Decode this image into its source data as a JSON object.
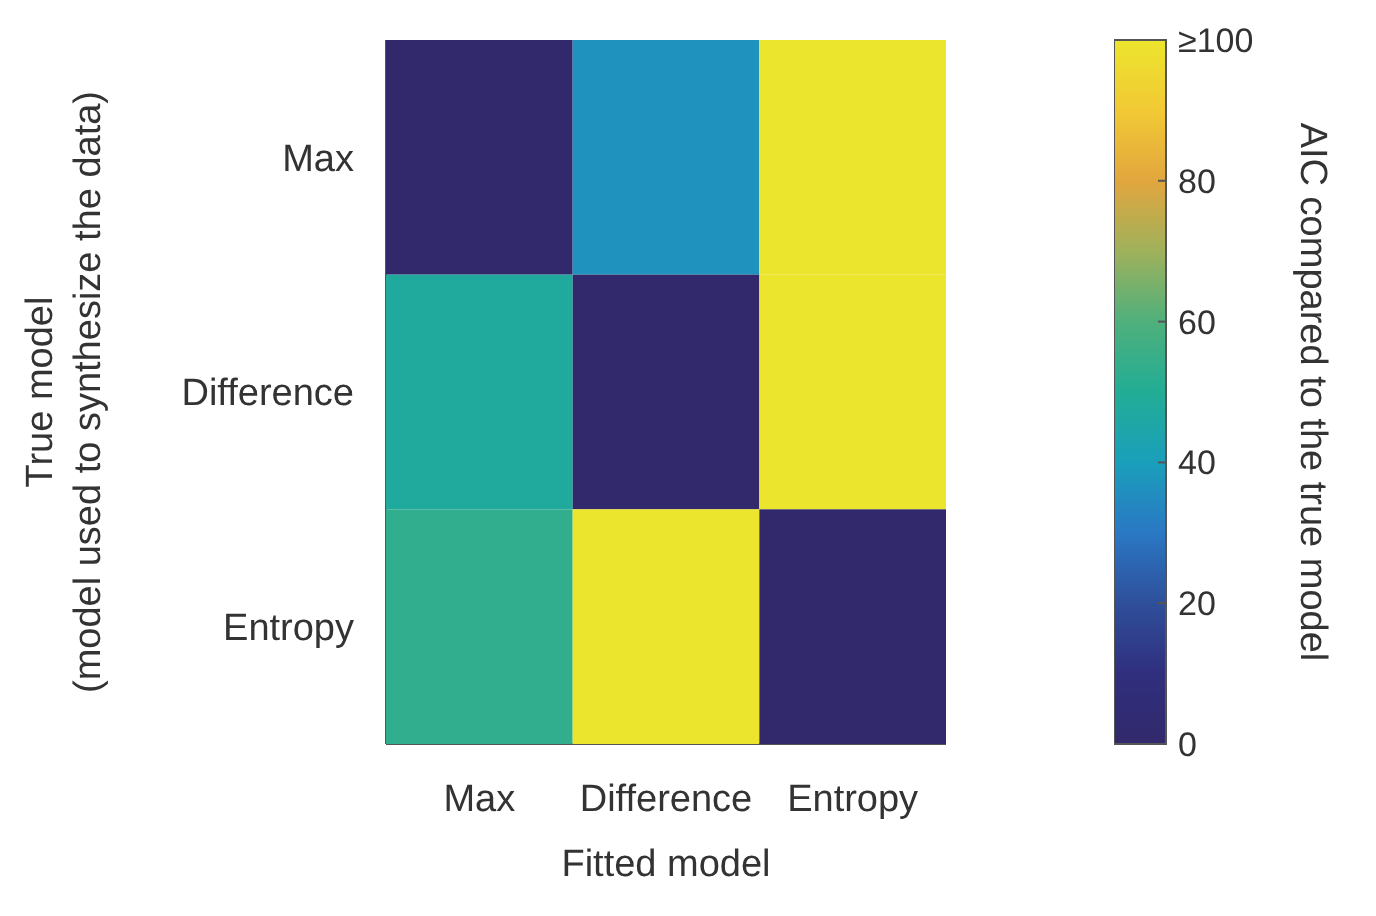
{
  "chart_data": {
    "type": "heatmap",
    "xlabel": "Fitted model",
    "ylabel": "True model\n(model used to synthesize the data)",
    "clabel": "AIC compared to the true model",
    "categories": [
      "Max",
      "Difference",
      "Entropy"
    ],
    "y_categories": [
      "Max",
      "Difference",
      "Entropy"
    ],
    "cells": [
      [
        0,
        37,
        100
      ],
      [
        48,
        0,
        100
      ],
      [
        53,
        100,
        0
      ]
    ],
    "clim": [
      0,
      100
    ],
    "cticks": [
      0,
      20,
      40,
      60,
      80,
      {
        "value": 100,
        "label": "≥100"
      }
    ]
  }
}
